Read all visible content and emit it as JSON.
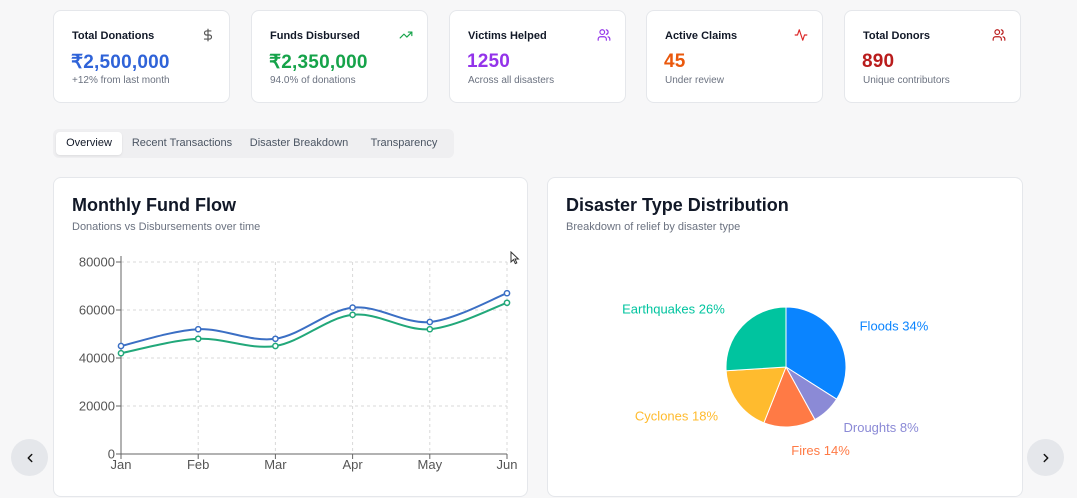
{
  "stats": [
    {
      "title": "Total Donations",
      "value": "₹2,500,000",
      "sub": "+12% from last month",
      "icon": "dollar-icon",
      "color": "#2f63d8"
    },
    {
      "title": "Funds Disbursed",
      "value": "₹2,350,000",
      "sub": "94.0% of donations",
      "icon": "trending-up-icon",
      "color": "#16a34a"
    },
    {
      "title": "Victims Helped",
      "value": "1250",
      "sub": "Across all disasters",
      "icon": "users-icon",
      "color": "#9333ea"
    },
    {
      "title": "Active Claims",
      "value": "45",
      "sub": "Under review",
      "icon": "activity-icon",
      "color": "#ea580c"
    },
    {
      "title": "Total Donors",
      "value": "890",
      "sub": "Unique contributors",
      "icon": "users-icon",
      "color": "#b91c1c"
    }
  ],
  "tabs": [
    {
      "label": "Overview",
      "active": true
    },
    {
      "label": "Recent Transactions",
      "active": false
    },
    {
      "label": "Disaster Breakdown",
      "active": false
    },
    {
      "label": "Transparency",
      "active": false
    }
  ],
  "fund_flow": {
    "title": "Monthly Fund Flow",
    "subtitle": "Donations vs Disbursements over time"
  },
  "distribution": {
    "title": "Disaster Type Distribution",
    "subtitle": "Breakdown of relief by disaster type"
  },
  "chart_data": [
    {
      "type": "line",
      "x": [
        "Jan",
        "Feb",
        "Mar",
        "Apr",
        "May",
        "Jun"
      ],
      "ylim": [
        0,
        80000
      ],
      "yticks": [
        0,
        20000,
        40000,
        60000,
        80000
      ],
      "grid": true,
      "series": [
        {
          "values": [
            45000,
            52000,
            48000,
            61000,
            55000,
            67000
          ],
          "color": "#3b6fc4"
        },
        {
          "values": [
            42000,
            48000,
            45000,
            58000,
            52000,
            63000
          ],
          "color": "#22a87a"
        }
      ]
    },
    {
      "type": "pie",
      "slices": [
        {
          "label": "Floods",
          "value": 34,
          "color": "#0a84ff",
          "text": "Floods 34%"
        },
        {
          "label": "Droughts",
          "value": 8,
          "color": "#8b8ad6",
          "text": "Droughts 8%"
        },
        {
          "label": "Fires",
          "value": 14,
          "color": "#ff7a45",
          "text": "Fires 14%"
        },
        {
          "label": "Cyclones",
          "value": 18,
          "color": "#ffbb2e",
          "text": "Cyclones 18%"
        },
        {
          "label": "Earthquakes",
          "value": 26,
          "color": "#00c49f",
          "text": "Earthquakes 26%"
        }
      ]
    }
  ]
}
